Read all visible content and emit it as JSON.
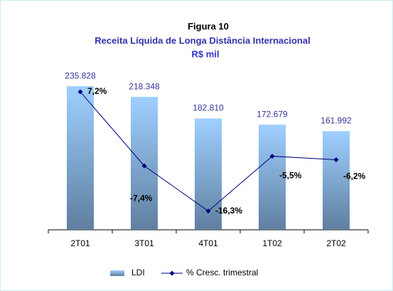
{
  "chart_data": {
    "type": "bar",
    "title": "Figura 10",
    "subtitle": "Receita Líquida de Longa Distância Internacional",
    "unit_label": "R$ mil",
    "categories": [
      "2T01",
      "3T01",
      "4T01",
      "1T02",
      "2T02"
    ],
    "series": [
      {
        "name": "LDI",
        "type": "bar",
        "color": "#8fbfe8",
        "values": [
          235828,
          218348,
          182810,
          172679,
          161992
        ],
        "value_labels": [
          "235.828",
          "218.348",
          "182.810",
          "172.679",
          "161.992"
        ]
      },
      {
        "name": "% Cresc. trimestral",
        "type": "line",
        "axis": "y2",
        "color": "#000080",
        "values": [
          7.2,
          -7.4,
          -16.3,
          -5.5,
          -6.2
        ],
        "value_labels": [
          "7,2%",
          "-7,4%",
          "-16,3%",
          "-5,5%",
          "-6,2%"
        ]
      }
    ],
    "ylim": [
      0,
      250000
    ],
    "y2lim": [
      -20,
      10
    ]
  }
}
